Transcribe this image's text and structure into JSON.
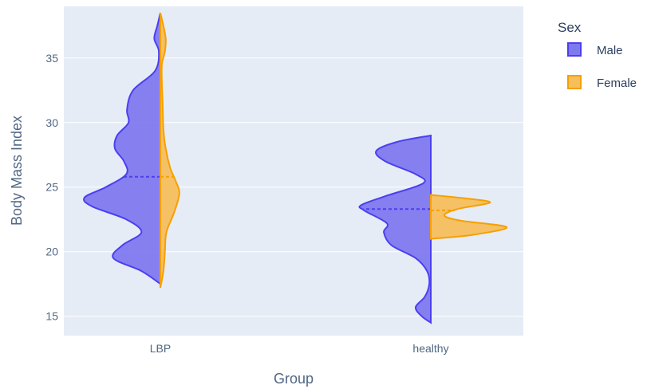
{
  "chart_data": {
    "type": "violin",
    "xlabel": "Group",
    "ylabel": "Body Mass Index",
    "categories": [
      "LBP",
      "healthy"
    ],
    "ylim": [
      13.5,
      39
    ],
    "yticks": [
      15,
      20,
      25,
      30,
      35
    ],
    "grid": true,
    "legend": {
      "title": "Sex",
      "position": "right",
      "entries": [
        "Male",
        "Female"
      ]
    },
    "series": [
      {
        "name": "Male",
        "side": "negative",
        "color": "#4b3ff0",
        "fill": "#7f79ef",
        "groups": [
          {
            "category": "LBP",
            "range": [
              17.5,
              38.5
            ],
            "median": 25.8,
            "density": [
              [
                17.5,
                0.0
              ],
              [
                18.5,
                0.25
              ],
              [
                19.5,
                0.62
              ],
              [
                20.5,
                0.5
              ],
              [
                21.5,
                0.25
              ],
              [
                22.5,
                0.45
              ],
              [
                23.5,
                0.9
              ],
              [
                24.2,
                1.0
              ],
              [
                25.0,
                0.72
              ],
              [
                26.0,
                0.45
              ],
              [
                27.0,
                0.48
              ],
              [
                28.0,
                0.6
              ],
              [
                29.0,
                0.57
              ],
              [
                30.0,
                0.42
              ],
              [
                31.0,
                0.44
              ],
              [
                32.5,
                0.36
              ],
              [
                34.0,
                0.07
              ],
              [
                35.5,
                0.02
              ],
              [
                36.5,
                0.08
              ],
              [
                37.5,
                0.04
              ],
              [
                38.5,
                0.0
              ]
            ]
          },
          {
            "category": "healthy",
            "range": [
              14.5,
              29.0
            ],
            "median": 23.3,
            "density": [
              [
                14.5,
                0.0
              ],
              [
                15.0,
                0.12
              ],
              [
                15.7,
                0.2
              ],
              [
                16.5,
                0.08
              ],
              [
                17.5,
                0.02
              ],
              [
                18.5,
                0.05
              ],
              [
                19.5,
                0.2
              ],
              [
                20.5,
                0.52
              ],
              [
                21.5,
                0.62
              ],
              [
                22.2,
                0.58
              ],
              [
                23.2,
                0.88
              ],
              [
                23.6,
                0.92
              ],
              [
                24.3,
                0.6
              ],
              [
                25.3,
                0.1
              ],
              [
                26.0,
                0.2
              ],
              [
                27.0,
                0.6
              ],
              [
                27.8,
                0.72
              ],
              [
                28.5,
                0.45
              ],
              [
                29.0,
                0.0
              ]
            ]
          }
        ]
      },
      {
        "name": "Female",
        "side": "positive",
        "color": "#f5a000",
        "fill": "#f7be5c",
        "groups": [
          {
            "category": "LBP",
            "range": [
              17.2,
              38.5
            ],
            "median": 25.8,
            "density": [
              [
                17.2,
                0.0
              ],
              [
                18.5,
                0.04
              ],
              [
                20.0,
                0.06
              ],
              [
                21.5,
                0.08
              ],
              [
                23.0,
                0.18
              ],
              [
                24.5,
                0.25
              ],
              [
                25.5,
                0.2
              ],
              [
                26.5,
                0.13
              ],
              [
                28.0,
                0.07
              ],
              [
                29.5,
                0.04
              ],
              [
                31.5,
                0.03
              ],
              [
                33.0,
                0.02
              ],
              [
                34.5,
                0.02
              ],
              [
                35.5,
                0.06
              ],
              [
                36.5,
                0.07
              ],
              [
                37.5,
                0.04
              ],
              [
                38.5,
                0.0
              ]
            ]
          },
          {
            "category": "healthy",
            "range": [
              21.0,
              24.4
            ],
            "median": 23.2,
            "density": [
              [
                21.0,
                0.0
              ],
              [
                21.3,
                0.55
              ],
              [
                21.9,
                1.0
              ],
              [
                22.4,
                0.4
              ],
              [
                22.8,
                0.18
              ],
              [
                23.3,
                0.35
              ],
              [
                23.8,
                0.78
              ],
              [
                24.1,
                0.5
              ],
              [
                24.4,
                0.0
              ]
            ]
          }
        ]
      }
    ]
  }
}
